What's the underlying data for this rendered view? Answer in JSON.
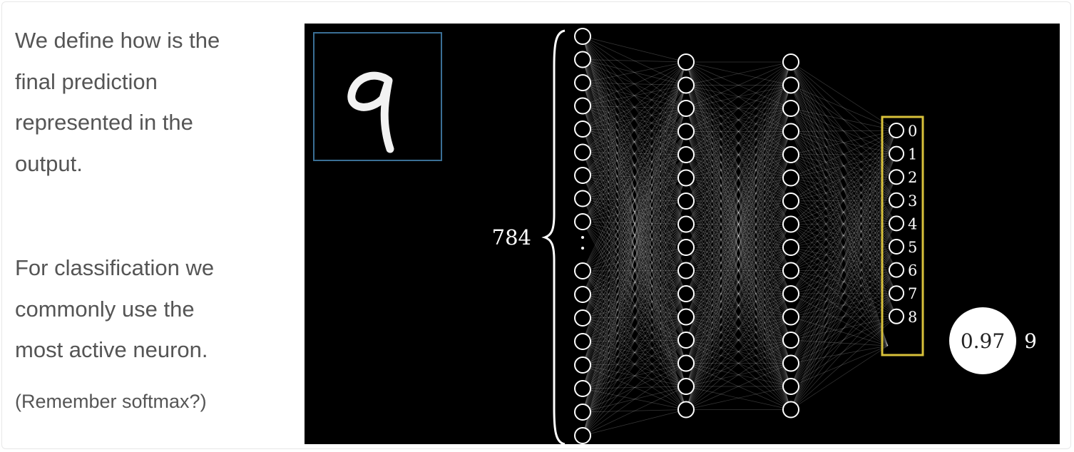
{
  "slide": {
    "paragraph1": [
      "We define how is the",
      "final prediction",
      "represented in the",
      "output."
    ],
    "paragraph2": [
      "For classification we",
      "commonly use the",
      "most active neuron."
    ],
    "note": "(Remember softmax?)"
  },
  "diagram": {
    "input_count_label": "784",
    "input_digit_label": "9",
    "output_labels": [
      "0",
      "1",
      "2",
      "3",
      "4",
      "5",
      "6",
      "7",
      "8"
    ],
    "prediction_value": "0.97",
    "prediction_label": "9",
    "colors": {
      "background": "#000000",
      "neuron": "#ffffff",
      "highlight_box": "#d8c13a",
      "input_frame": "#3a6f95"
    }
  }
}
